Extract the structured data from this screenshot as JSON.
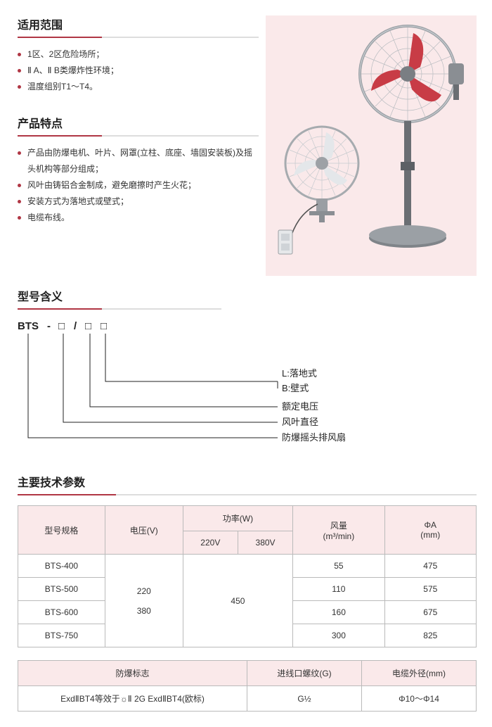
{
  "sections": {
    "scope_title": "适用范围",
    "scope_items": [
      "1区、2区危险场所；",
      "Ⅱ A、Ⅱ B类爆炸性环境；",
      "温度组别T1～T4。"
    ],
    "feature_title": "产品特点",
    "feature_items": [
      "产品由防爆电机、叶片、网罩(立柱、底座、墙固安装板)及摇头机构等部分组成；",
      "风叶由铸铝合金制成，避免磨擦时产生火花；",
      "安装方式为落地式或壁式；",
      "电缆布线。"
    ],
    "model_title": "型号含义",
    "model_prefix_parts": [
      "BTS",
      "-",
      "□",
      "/",
      "□",
      "□"
    ],
    "model_labels": {
      "l1": "L:落地式",
      "l2": "B:壁式",
      "l3": "额定电压",
      "l4": "风叶直径",
      "l5": "防爆摇头排风扇"
    },
    "param_title": "主要技术参数",
    "table1": {
      "headers": {
        "model": "型号规格",
        "voltage": "电压(V)",
        "power": "功率(W)",
        "p220": "220V",
        "p380": "380V",
        "airflow_html": "风量<br>(m³/min)",
        "phi_html": "ΦA<br>(mm)"
      },
      "voltage_cell_html": "220<br><br>380",
      "power_cell": "450",
      "rows": [
        {
          "model": "BTS-400",
          "airflow": "55",
          "phi": "475"
        },
        {
          "model": "BTS-500",
          "airflow": "110",
          "phi": "575"
        },
        {
          "model": "BTS-600",
          "airflow": "160",
          "phi": "675"
        },
        {
          "model": "BTS-750",
          "airflow": "300",
          "phi": "825"
        }
      ]
    },
    "table2": {
      "headers": {
        "mark": "防爆标志",
        "thread": "进线口螺纹(G)",
        "cable": "电缆外径(mm)"
      },
      "row": {
        "mark": "ExdⅡBT4等效于☼Ⅱ 2G ExdⅡBT4(欧标)",
        "thread": "G½",
        "cable": "Φ10～Φ14"
      }
    }
  },
  "style": {
    "accent": "#b03644",
    "bg_pink": "#fae9ea",
    "border": "#bababa",
    "text": "#333333",
    "fan_gray": "#b8bcc0",
    "fan_red": "#c83c46",
    "fan_dark": "#6a6e73"
  }
}
